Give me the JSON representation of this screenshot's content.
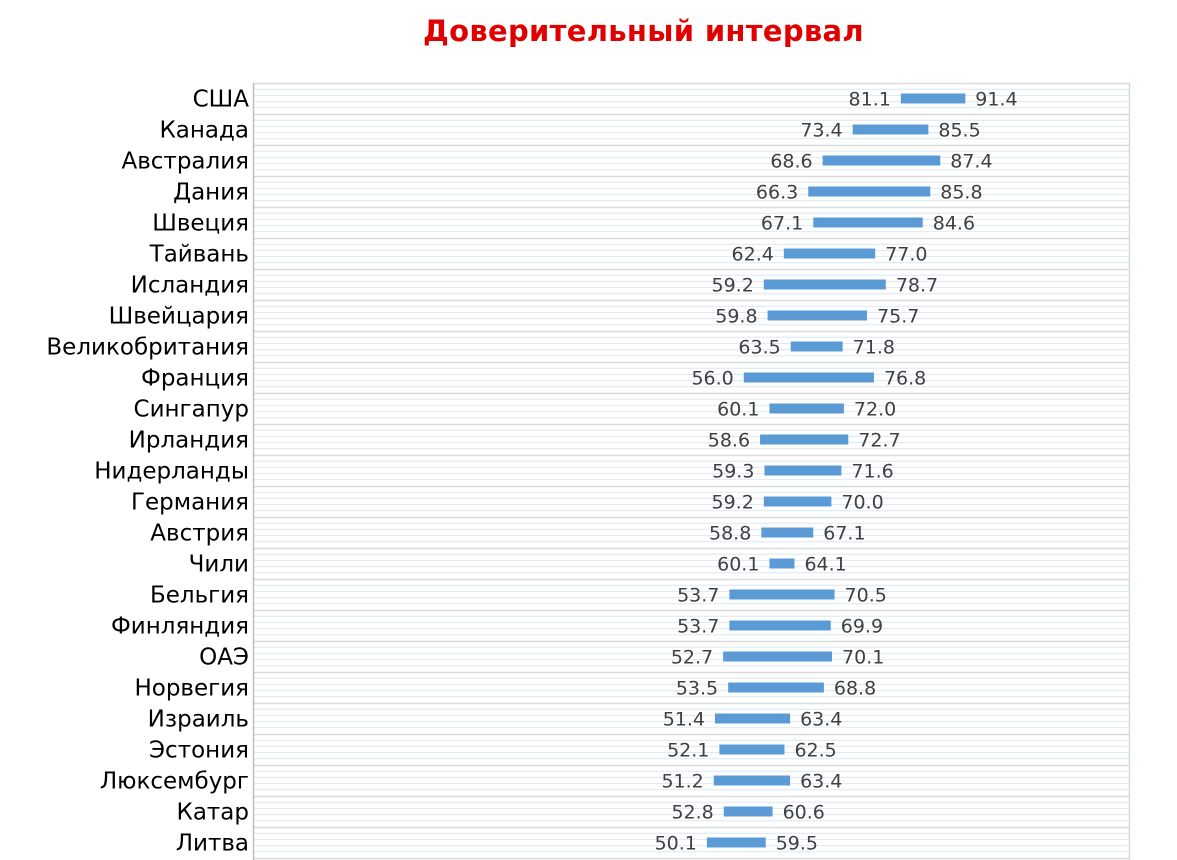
{
  "colors": {
    "title": "#e00000",
    "bar": "#5b9bd5",
    "grid_major": "#d9d9d9",
    "grid_minor": "#dae7f3",
    "axis": "#bfbfbf",
    "label": "#404040"
  },
  "chart_data": {
    "type": "bar",
    "orientation": "horizontal-range",
    "title": "Доверительный интервал",
    "xlabel": "",
    "ylabel": "",
    "xlim": [
      0,
      100
    ],
    "grid": true,
    "legend": "none",
    "categories": [
      "США",
      "Канада",
      "Австралия",
      "Дания",
      "Швеция",
      "Тайвань",
      "Исландия",
      "Швейцария",
      "Великобритания",
      "Франция",
      "Сингапур",
      "Ирландия",
      "Нидерланды",
      "Германия",
      "Австрия",
      "Чили",
      "Бельгия",
      "Финляндия",
      "ОАЭ",
      "Норвегия",
      "Израиль",
      "Эстония",
      "Люксембург",
      "Катар",
      "Литва"
    ],
    "low": [
      81.1,
      73.4,
      68.6,
      66.3,
      67.1,
      62.4,
      59.2,
      59.8,
      63.5,
      56.0,
      60.1,
      58.6,
      59.3,
      59.2,
      58.8,
      60.1,
      53.7,
      53.7,
      52.7,
      53.5,
      51.4,
      52.1,
      51.2,
      52.8,
      50.1
    ],
    "high": [
      91.4,
      85.5,
      87.4,
      85.8,
      84.6,
      77.0,
      78.7,
      75.7,
      71.8,
      76.8,
      72.0,
      72.7,
      71.6,
      70.0,
      67.1,
      64.1,
      70.5,
      69.9,
      70.1,
      68.8,
      63.4,
      62.5,
      63.4,
      60.6,
      59.5
    ],
    "low_labels": [
      "81.1",
      "73.4",
      "68.6",
      "66.3",
      "67.1",
      "62.4",
      "59.2",
      "59.8",
      "63.5",
      "56.0",
      "60.1",
      "58.6",
      "59.3",
      "59.2",
      "58.8",
      "60.1",
      "53.7",
      "53.7",
      "52.7",
      "53.5",
      "51.4",
      "52.1",
      "51.2",
      "52.8",
      "50.1"
    ],
    "high_labels": [
      "91.4",
      "85.5",
      "87.4",
      "85.8",
      "84.6",
      "77.0",
      "78.7",
      "75.7",
      "71.8",
      "76.8",
      "72.0",
      "72.7",
      "71.6",
      "70.0",
      "67.1",
      "64.1",
      "70.5",
      "69.9",
      "70.1",
      "68.8",
      "63.4",
      "62.5",
      "63.4",
      "60.6",
      "59.5"
    ]
  }
}
